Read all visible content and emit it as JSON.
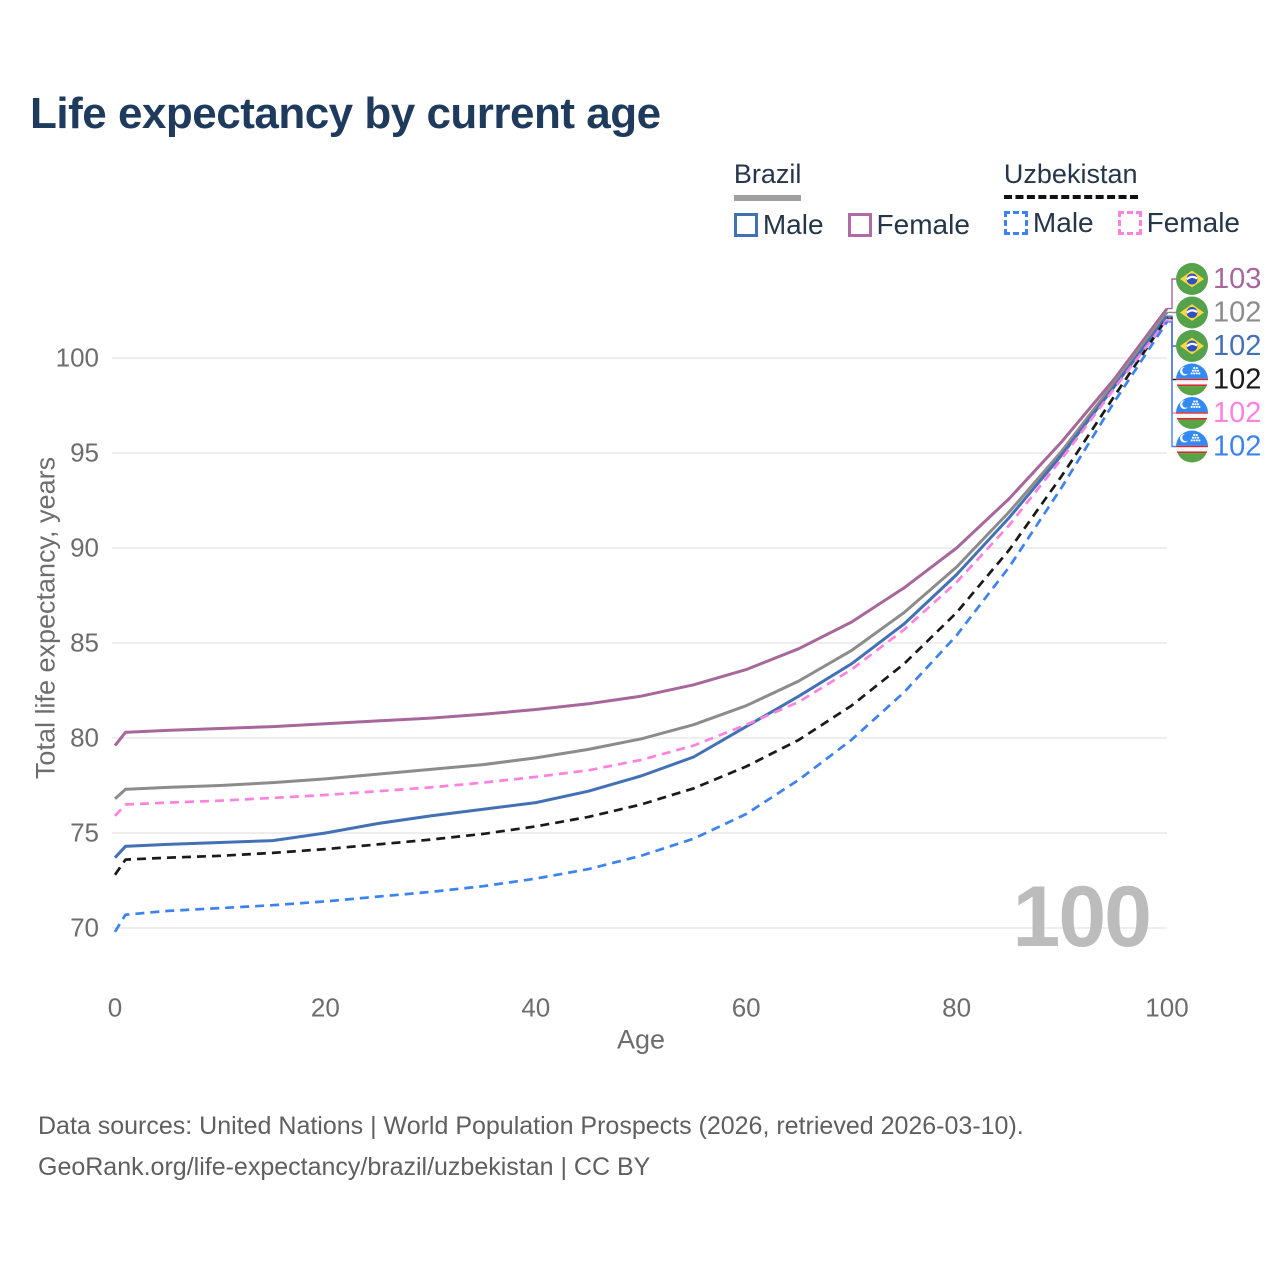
{
  "title": "Life expectancy by current age",
  "watermark": "100",
  "legend": {
    "groups": [
      {
        "label": "Brazil",
        "line_style": "solid",
        "underline_color": "#9e9e9e",
        "items": [
          {
            "label": "Male",
            "color": "#4371b5",
            "dashed": false
          },
          {
            "label": "Female",
            "color": "#b06aa5",
            "dashed": false
          }
        ]
      },
      {
        "label": "Uzbekistan",
        "line_style": "dashed",
        "underline_color": "#111111",
        "items": [
          {
            "label": "Male",
            "color": "#3c82f0",
            "dashed": true
          },
          {
            "label": "Female",
            "color": "#ff82df",
            "dashed": true
          }
        ]
      }
    ]
  },
  "footer": {
    "line1": "Data sources: United Nations | World Population Prospects (2026, retrieved 2026-03-10).",
    "line2": "GeoRank.org/life-expectancy/brazil/uzbekistan | CC BY"
  },
  "chart_data": {
    "type": "line",
    "title": "Life expectancy by current age",
    "xlabel": "Age",
    "ylabel": "Total life expectancy, years",
    "xlim": [
      0,
      100
    ],
    "ylim": [
      68.5,
      104
    ],
    "x_ticks": [
      0,
      20,
      40,
      60,
      80,
      100
    ],
    "y_ticks": [
      70,
      75,
      80,
      85,
      90,
      95,
      100
    ],
    "grid": "horizontal",
    "legend_position": "top-right",
    "x": [
      0,
      1,
      5,
      10,
      15,
      20,
      25,
      30,
      35,
      40,
      45,
      50,
      55,
      60,
      65,
      70,
      75,
      80,
      85,
      90,
      95,
      100
    ],
    "series": [
      {
        "name": "Brazil Female",
        "country": "brazil",
        "color": "#a8679b",
        "dashed": false,
        "end_label": "103",
        "values": [
          79.6,
          80.3,
          80.4,
          80.5,
          80.6,
          80.75,
          80.9,
          81.05,
          81.25,
          81.5,
          81.8,
          82.2,
          82.8,
          83.6,
          84.7,
          86.1,
          87.9,
          90.0,
          92.6,
          95.6,
          98.9,
          102.6
        ]
      },
      {
        "name": "Brazil",
        "country": "brazil",
        "color": "#8c8c8c",
        "dashed": false,
        "end_label": "102",
        "values": [
          76.8,
          77.3,
          77.4,
          77.5,
          77.65,
          77.85,
          78.1,
          78.35,
          78.6,
          78.95,
          79.4,
          79.95,
          80.7,
          81.7,
          83.0,
          84.6,
          86.6,
          89.0,
          91.9,
          95.1,
          98.7,
          102.4
        ]
      },
      {
        "name": "Brazil Male",
        "country": "brazil",
        "color": "#4371b5",
        "dashed": false,
        "end_label": "102",
        "values": [
          73.7,
          74.3,
          74.4,
          74.5,
          74.6,
          75.0,
          75.5,
          75.9,
          76.25,
          76.6,
          77.2,
          78.0,
          79.0,
          80.6,
          82.2,
          83.9,
          86.0,
          88.6,
          91.6,
          94.9,
          98.5,
          102.2
        ]
      },
      {
        "name": "Uzbekistan",
        "country": "uzbekistan",
        "color": "#1a1a1a",
        "dashed": true,
        "end_label": "102",
        "values": [
          72.8,
          73.6,
          73.7,
          73.8,
          73.95,
          74.15,
          74.4,
          74.65,
          74.95,
          75.35,
          75.85,
          76.5,
          77.35,
          78.5,
          79.9,
          81.7,
          83.9,
          86.6,
          89.9,
          93.8,
          98.0,
          102.1
        ]
      },
      {
        "name": "Uzbekistan Female",
        "country": "uzbekistan",
        "color": "#ff82df",
        "dashed": true,
        "end_label": "102",
        "values": [
          75.9,
          76.5,
          76.6,
          76.7,
          76.85,
          77.0,
          77.2,
          77.4,
          77.65,
          77.95,
          78.3,
          78.85,
          79.6,
          80.7,
          81.9,
          83.6,
          85.7,
          88.2,
          91.2,
          94.7,
          98.4,
          102.0
        ]
      },
      {
        "name": "Uzbekistan Male",
        "country": "uzbekistan",
        "color": "#3c82f0",
        "dashed": true,
        "end_label": "102",
        "values": [
          69.8,
          70.7,
          70.9,
          71.05,
          71.2,
          71.4,
          71.65,
          71.9,
          72.2,
          72.6,
          73.1,
          73.8,
          74.7,
          76.0,
          77.8,
          79.9,
          82.4,
          85.4,
          89.0,
          93.2,
          97.7,
          101.9
        ]
      }
    ]
  }
}
